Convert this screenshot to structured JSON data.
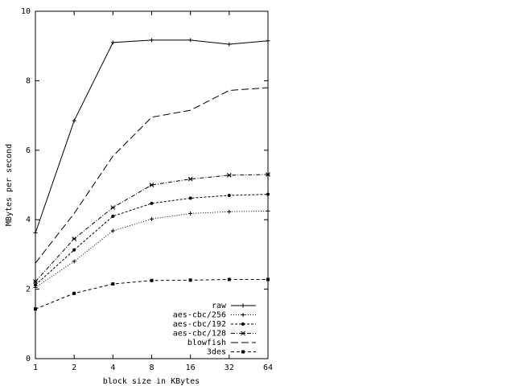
{
  "chart_data": {
    "type": "line",
    "title": "",
    "xlabel": "block size in KBytes",
    "ylabel": "MBytes per second",
    "x": [
      1,
      2,
      4,
      8,
      16,
      32,
      64
    ],
    "x_tick_labels": [
      "1",
      "2",
      "4",
      "8",
      "16",
      "32",
      "64"
    ],
    "x_scale": "log2",
    "y_ticks": [
      0,
      2,
      4,
      6,
      8,
      10
    ],
    "ylim": [
      0,
      10
    ],
    "grid": false,
    "legend_position": "bottom-right",
    "series": [
      {
        "name": "raw",
        "dash": "solid",
        "marker": "plus",
        "values": [
          3.62,
          6.85,
          9.1,
          9.17,
          9.17,
          9.05,
          9.15
        ]
      },
      {
        "name": "aes-cbc/256",
        "dash": "dotted",
        "marker": "plus",
        "values": [
          2.05,
          2.8,
          3.68,
          4.02,
          4.18,
          4.23,
          4.25
        ]
      },
      {
        "name": "aes-cbc/192",
        "dash": "shortdash",
        "marker": "dot",
        "values": [
          2.12,
          3.13,
          4.1,
          4.47,
          4.62,
          4.7,
          4.73
        ]
      },
      {
        "name": "aes-cbc/128",
        "dash": "dashdot",
        "marker": "cross",
        "values": [
          2.22,
          3.45,
          4.35,
          5.0,
          5.17,
          5.28,
          5.3
        ]
      },
      {
        "name": "blowfish",
        "dash": "longdash",
        "marker": "none",
        "values": [
          2.75,
          4.18,
          5.83,
          6.95,
          7.15,
          7.72,
          7.8
        ]
      },
      {
        "name": "3des",
        "dash": "dashdot2",
        "marker": "square",
        "values": [
          1.43,
          1.88,
          2.15,
          2.25,
          2.26,
          2.28,
          2.28
        ]
      }
    ]
  }
}
